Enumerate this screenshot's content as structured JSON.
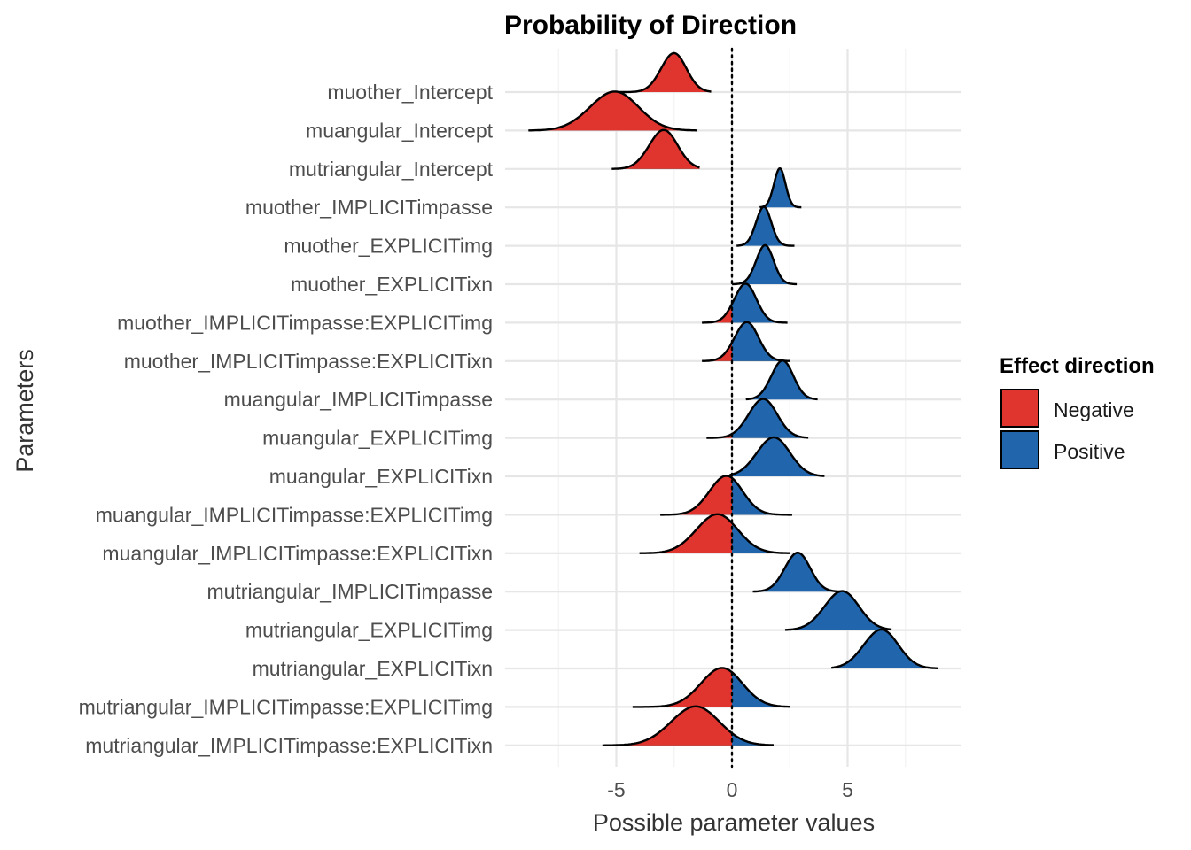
{
  "chart_data": {
    "type": "ridgeline",
    "title": "Probability of Direction",
    "xlabel": "Possible parameter values",
    "ylabel": "Parameters",
    "xlim": [
      -9.7,
      9.8
    ],
    "xticks": [
      "-5",
      "0",
      "5"
    ],
    "xtick_values": [
      -5,
      0,
      5
    ],
    "reference_line": 0,
    "grid": true,
    "legend": {
      "title": "Effect direction",
      "position": "right",
      "entries": [
        {
          "label": "Negative",
          "color": "#e0342f"
        },
        {
          "label": "Positive",
          "color": "#2166ac"
        }
      ]
    },
    "parameters": [
      {
        "name": "muother_Intercept",
        "mean": -2.55,
        "sd": 0.55,
        "min": -4.9,
        "max": -0.9,
        "scale": 1.0
      },
      {
        "name": "muangular_Intercept",
        "mean": -5.15,
        "sd": 1.05,
        "min": -8.8,
        "max": -1.5,
        "scale": 1.0
      },
      {
        "name": "mutriangular_Intercept",
        "mean": -3.0,
        "sd": 0.62,
        "min": -5.2,
        "max": -1.4,
        "scale": 1.0
      },
      {
        "name": "muother_IMPLICITimpasse",
        "mean": 2.05,
        "sd": 0.25,
        "min": 1.2,
        "max": 3.0,
        "scale": 1.0
      },
      {
        "name": "muother_EXPLICITimg",
        "mean": 1.35,
        "sd": 0.33,
        "min": 0.2,
        "max": 2.7,
        "scale": 1.0
      },
      {
        "name": "muother_EXPLICITixn",
        "mean": 1.4,
        "sd": 0.38,
        "min": 0.0,
        "max": 2.8,
        "scale": 1.0
      },
      {
        "name": "muother_IMPLICITimpasse:EXPLICITimg",
        "mean": 0.55,
        "sd": 0.48,
        "min": -1.3,
        "max": 2.4,
        "scale": 1.0
      },
      {
        "name": "muother_IMPLICITimpasse:EXPLICITixn",
        "mean": 0.6,
        "sd": 0.52,
        "min": -1.3,
        "max": 2.5,
        "scale": 1.0
      },
      {
        "name": "muangular_IMPLICITimpasse",
        "mean": 2.15,
        "sd": 0.48,
        "min": 0.6,
        "max": 3.7,
        "scale": 1.0
      },
      {
        "name": "muangular_EXPLICITimg",
        "mean": 1.3,
        "sd": 0.62,
        "min": -1.1,
        "max": 3.3,
        "scale": 1.0
      },
      {
        "name": "muangular_EXPLICITixn",
        "mean": 1.75,
        "sd": 0.72,
        "min": -0.1,
        "max": 4.0,
        "scale": 1.0
      },
      {
        "name": "muangular_IMPLICITimpasse:EXPLICITimg",
        "mean": -0.3,
        "sd": 0.72,
        "min": -3.1,
        "max": 2.6,
        "scale": 1.0
      },
      {
        "name": "muangular_IMPLICITimpasse:EXPLICITixn",
        "mean": -0.7,
        "sd": 0.9,
        "min": -4.0,
        "max": 2.5,
        "scale": 1.0
      },
      {
        "name": "mutriangular_IMPLICITimpasse",
        "mean": 2.8,
        "sd": 0.55,
        "min": 0.9,
        "max": 4.8,
        "scale": 1.0
      },
      {
        "name": "mutriangular_EXPLICITimg",
        "mean": 4.7,
        "sd": 0.75,
        "min": 2.3,
        "max": 6.9,
        "scale": 1.0
      },
      {
        "name": "mutriangular_EXPLICITixn",
        "mean": 6.4,
        "sd": 0.75,
        "min": 4.3,
        "max": 8.9,
        "scale": 1.0
      },
      {
        "name": "mutriangular_IMPLICITimpasse:EXPLICITimg",
        "mean": -0.5,
        "sd": 0.9,
        "min": -4.3,
        "max": 2.5,
        "scale": 1.0
      },
      {
        "name": "mutriangular_IMPLICITimpasse:EXPLICITixn",
        "mean": -1.65,
        "sd": 1.05,
        "min": -5.6,
        "max": 1.8,
        "scale": 1.0
      }
    ]
  }
}
